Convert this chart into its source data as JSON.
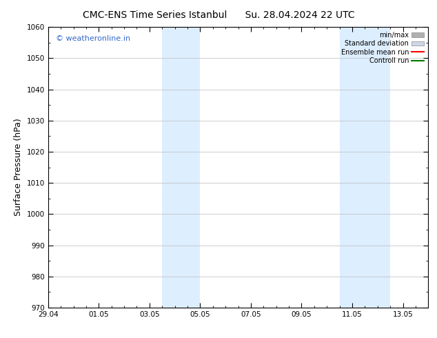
{
  "title_left": "CMC-ENS Time Series Istanbul",
  "title_right": "Su. 28.04.2024 22 UTC",
  "ylabel": "Surface Pressure (hPa)",
  "ylim": [
    970,
    1060
  ],
  "yticks": [
    970,
    980,
    990,
    1000,
    1010,
    1020,
    1030,
    1040,
    1050,
    1060
  ],
  "xlim_start": 0,
  "xlim_end": 15,
  "xtick_labels": [
    "29.04",
    "01.05",
    "03.05",
    "05.05",
    "07.05",
    "09.05",
    "11.05",
    "13.05"
  ],
  "xtick_positions": [
    0,
    2,
    4,
    6,
    8,
    10,
    12,
    14
  ],
  "shaded_bands": [
    {
      "xmin": 4.5,
      "xmax": 6.0
    },
    {
      "xmin": 11.5,
      "xmax": 12.5
    },
    {
      "xmin": 12.5,
      "xmax": 13.5
    }
  ],
  "shade_color": "#ddeeff",
  "watermark_text": "© weatheronline.in",
  "watermark_color": "#3366cc",
  "legend_items": [
    {
      "label": "min/max",
      "color": "#b0b0b0",
      "style": "hbar"
    },
    {
      "label": "Standard deviation",
      "color": "#d0d8e8",
      "style": "hbar"
    },
    {
      "label": "Ensemble mean run",
      "color": "#ff0000",
      "style": "line"
    },
    {
      "label": "Controll run",
      "color": "#007700",
      "style": "line"
    }
  ],
  "background_color": "#ffffff",
  "grid_color": "#bbbbbb",
  "title_fontsize": 10,
  "ylabel_fontsize": 9,
  "tick_fontsize": 7.5,
  "legend_fontsize": 7,
  "watermark_fontsize": 8
}
